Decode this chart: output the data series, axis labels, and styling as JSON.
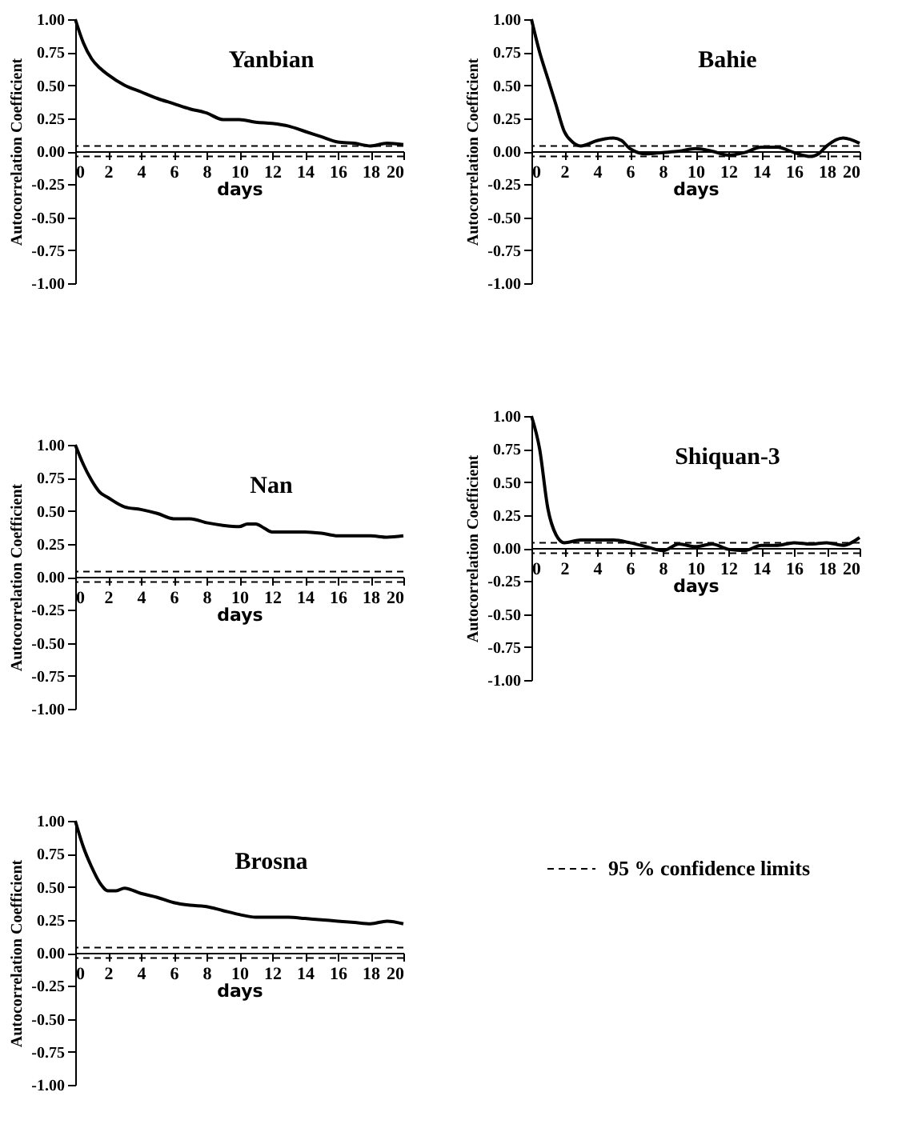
{
  "chart_data": [
    {
      "type": "line",
      "title": "Yanbian",
      "xlabel": "days",
      "ylabel": "Autocorrelation Coefficient",
      "xlim": [
        0,
        20
      ],
      "xticks": [
        0,
        2,
        4,
        6,
        8,
        10,
        12,
        14,
        16,
        18,
        20
      ],
      "ylim": [
        -1,
        1
      ],
      "yticks": [
        {
          "value": -1,
          "label": "-1.00"
        },
        {
          "value": -0.75,
          "label": "-0.75"
        },
        {
          "value": -0.5,
          "label": "-0.50"
        },
        {
          "value": -0.25,
          "label": "-0.25"
        },
        {
          "value": 0,
          "label": "0.00"
        },
        {
          "value": 0.25,
          "label": "0.25"
        },
        {
          "value": 0.5,
          "label": "0.50"
        },
        {
          "value": 0.75,
          "label": "0.75"
        },
        {
          "value": 1,
          "label": "1.00"
        }
      ],
      "x": [
        0,
        0.5,
        1,
        1.5,
        2,
        3,
        4,
        5,
        6,
        7,
        8,
        9,
        10,
        11,
        12,
        13,
        14,
        15,
        16,
        17,
        18,
        19,
        20
      ],
      "series": [
        {
          "color": "#000000",
          "values": [
            1.0,
            0.82,
            0.7,
            0.63,
            0.58,
            0.5,
            0.45,
            0.4,
            0.36,
            0.32,
            0.29,
            0.24,
            0.24,
            0.22,
            0.21,
            0.19,
            0.15,
            0.11,
            0.07,
            0.06,
            0.04,
            0.06,
            0.05
          ]
        }
      ],
      "ref_lines": [
        {
          "axis": "y",
          "value": 0.04,
          "line_style": "dashed"
        },
        {
          "axis": "y",
          "value": -0.04,
          "line_style": "dashed"
        }
      ]
    },
    {
      "type": "line",
      "title": "Bahie",
      "xlabel": "days",
      "ylabel": "Autocorrelation Coefficient",
      "xlim": [
        0,
        20
      ],
      "xticks": [
        0,
        2,
        4,
        6,
        8,
        10,
        12,
        14,
        16,
        18,
        20
      ],
      "ylim": [
        -1,
        1
      ],
      "yticks": [
        {
          "value": -1,
          "label": "-1.00"
        },
        {
          "value": -0.75,
          "label": "-0.75"
        },
        {
          "value": -0.5,
          "label": "-0.50"
        },
        {
          "value": -0.25,
          "label": "-0.25"
        },
        {
          "value": 0,
          "label": "0.00"
        },
        {
          "value": 0.25,
          "label": "0.25"
        },
        {
          "value": 0.5,
          "label": "0.50"
        },
        {
          "value": 0.75,
          "label": "0.75"
        },
        {
          "value": 1,
          "label": "1.00"
        }
      ],
      "x": [
        0,
        0.5,
        1,
        1.5,
        2,
        2.5,
        3,
        4,
        5,
        5.5,
        6,
        7,
        8,
        9,
        10,
        11,
        12,
        13,
        14,
        15,
        16,
        17,
        17.5,
        18,
        19,
        20
      ],
      "series": [
        {
          "color": "#000000",
          "values": [
            1.0,
            0.75,
            0.55,
            0.35,
            0.15,
            0.07,
            0.04,
            0.08,
            0.1,
            0.08,
            0.02,
            -0.02,
            -0.01,
            0.0,
            0.02,
            0.0,
            -0.03,
            -0.01,
            0.03,
            0.03,
            -0.01,
            -0.04,
            -0.02,
            0.04,
            0.1,
            0.06
          ]
        }
      ],
      "ref_lines": [
        {
          "axis": "y",
          "value": 0.04,
          "line_style": "dashed"
        },
        {
          "axis": "y",
          "value": -0.04,
          "line_style": "dashed"
        }
      ]
    },
    {
      "type": "line",
      "title": "Nan",
      "xlabel": "days",
      "ylabel": "Autocorrelation Coefficient",
      "xlim": [
        0,
        20
      ],
      "xticks": [
        0,
        2,
        4,
        6,
        8,
        10,
        12,
        14,
        16,
        18,
        20
      ],
      "ylim": [
        -1,
        1
      ],
      "yticks": [
        {
          "value": -1,
          "label": "-1.00"
        },
        {
          "value": -0.75,
          "label": "-0.75"
        },
        {
          "value": -0.5,
          "label": "-0.50"
        },
        {
          "value": -0.25,
          "label": "-0.25"
        },
        {
          "value": 0,
          "label": "0.00"
        },
        {
          "value": 0.25,
          "label": "0.25"
        },
        {
          "value": 0.5,
          "label": "0.50"
        },
        {
          "value": 0.75,
          "label": "0.75"
        },
        {
          "value": 1,
          "label": "1.00"
        }
      ],
      "x": [
        0,
        0.5,
        1,
        1.5,
        2,
        3,
        4,
        5,
        6,
        7,
        8,
        9,
        10,
        10.5,
        11,
        11.5,
        12,
        13,
        14,
        15,
        16,
        17,
        18,
        19,
        20
      ],
      "series": [
        {
          "color": "#000000",
          "values": [
            1.0,
            0.85,
            0.73,
            0.64,
            0.6,
            0.53,
            0.51,
            0.48,
            0.44,
            0.44,
            0.41,
            0.39,
            0.38,
            0.4,
            0.4,
            0.37,
            0.34,
            0.34,
            0.34,
            0.33,
            0.31,
            0.31,
            0.31,
            0.3,
            0.31
          ]
        }
      ],
      "ref_lines": [
        {
          "axis": "y",
          "value": 0.04,
          "line_style": "dashed"
        },
        {
          "axis": "y",
          "value": -0.04,
          "line_style": "dashed"
        }
      ]
    },
    {
      "type": "line",
      "title": "Shiquan-3",
      "xlabel": "days",
      "ylabel": "Autocorrelation Coefficient",
      "xlim": [
        0,
        20
      ],
      "xticks": [
        0,
        2,
        4,
        6,
        8,
        10,
        12,
        14,
        16,
        18,
        20
      ],
      "ylim": [
        -1,
        1
      ],
      "yticks": [
        {
          "value": -1,
          "label": "-1.00"
        },
        {
          "value": -0.75,
          "label": "-0.75"
        },
        {
          "value": -0.5,
          "label": "-0.50"
        },
        {
          "value": -0.25,
          "label": "-0.25"
        },
        {
          "value": 0,
          "label": "0.00"
        },
        {
          "value": 0.25,
          "label": "0.25"
        },
        {
          "value": 0.5,
          "label": "0.50"
        },
        {
          "value": 0.75,
          "label": "0.75"
        },
        {
          "value": 1,
          "label": "1.00"
        }
      ],
      "x": [
        0,
        0.5,
        1,
        1.5,
        2,
        3,
        4,
        5,
        6,
        7,
        8,
        9,
        10,
        11,
        12,
        13,
        14,
        15,
        16,
        17,
        18,
        19,
        20
      ],
      "series": [
        {
          "color": "#000000",
          "values": [
            1.0,
            0.75,
            0.3,
            0.1,
            0.04,
            0.06,
            0.06,
            0.06,
            0.04,
            0.01,
            -0.02,
            0.03,
            0.01,
            0.03,
            -0.01,
            -0.02,
            0.02,
            0.02,
            0.04,
            0.03,
            0.04,
            0.02,
            0.08
          ]
        }
      ],
      "ref_lines": [
        {
          "axis": "y",
          "value": 0.04,
          "line_style": "dashed"
        },
        {
          "axis": "y",
          "value": -0.04,
          "line_style": "dashed"
        }
      ]
    },
    {
      "type": "line",
      "title": "Brosna",
      "xlabel": "days",
      "ylabel": "Autocorrelation Coefficient",
      "xlim": [
        0,
        20
      ],
      "xticks": [
        0,
        2,
        4,
        6,
        8,
        10,
        12,
        14,
        16,
        18,
        20
      ],
      "ylim": [
        -1,
        1
      ],
      "yticks": [
        {
          "value": -1,
          "label": "-1.00"
        },
        {
          "value": -0.75,
          "label": "-0.75"
        },
        {
          "value": -0.5,
          "label": "-0.50"
        },
        {
          "value": -0.25,
          "label": "-0.25"
        },
        {
          "value": 0,
          "label": "0.00"
        },
        {
          "value": 0.25,
          "label": "0.25"
        },
        {
          "value": 0.5,
          "label": "0.50"
        },
        {
          "value": 0.75,
          "label": "0.75"
        },
        {
          "value": 1,
          "label": "1.00"
        }
      ],
      "x": [
        0,
        0.5,
        1,
        1.5,
        2,
        2.5,
        3,
        4,
        5,
        6,
        7,
        8,
        9,
        10,
        11,
        12,
        13,
        14,
        15,
        16,
        17,
        18,
        19,
        20
      ],
      "series": [
        {
          "color": "#000000",
          "values": [
            1.0,
            0.8,
            0.65,
            0.53,
            0.47,
            0.47,
            0.49,
            0.45,
            0.42,
            0.38,
            0.36,
            0.35,
            0.32,
            0.29,
            0.27,
            0.27,
            0.27,
            0.26,
            0.25,
            0.24,
            0.23,
            0.22,
            0.24,
            0.22
          ]
        }
      ],
      "ref_lines": [
        {
          "axis": "y",
          "value": 0.04,
          "line_style": "dashed"
        },
        {
          "axis": "y",
          "value": -0.04,
          "line_style": "dashed"
        }
      ],
      "annotations": [
        "95 % confidence limits"
      ]
    }
  ]
}
